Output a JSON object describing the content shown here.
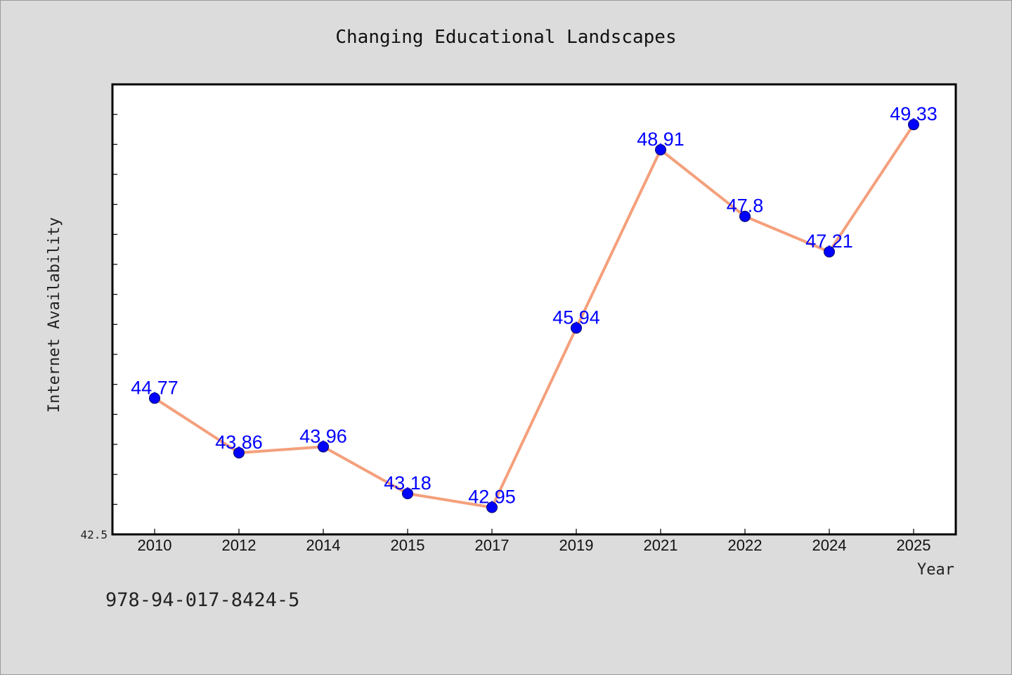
{
  "chart_data": {
    "type": "line",
    "title": "Changing Educational Landscapes",
    "xlabel": "Year",
    "ylabel": "Internet Availability",
    "categories": [
      "2010",
      "2012",
      "2014",
      "2015",
      "2017",
      "2019",
      "2021",
      "2022",
      "2024",
      "2025"
    ],
    "series": [
      {
        "values": [
          44.77,
          43.86,
          43.96,
          43.18,
          42.95,
          45.94,
          48.91,
          47.8,
          47.21,
          49.33
        ]
      }
    ],
    "data_labels": [
      "44.77",
      "43.86",
      "43.96",
      "43.18",
      "42.95",
      "45.94",
      "48.91",
      "47.8",
      "47.21",
      "49.33"
    ],
    "ylim": [
      42.5,
      50.0
    ],
    "ytick_labels": [
      "42.5"
    ],
    "grid": false,
    "legend": "none"
  },
  "footnote": "978-94-017-8424-5",
  "colors": {
    "background": "#dcdcdc",
    "plot_background": "#ffffff",
    "line": "#f4a07c",
    "marker": "#0000ff",
    "data_label": "#0000ff"
  }
}
